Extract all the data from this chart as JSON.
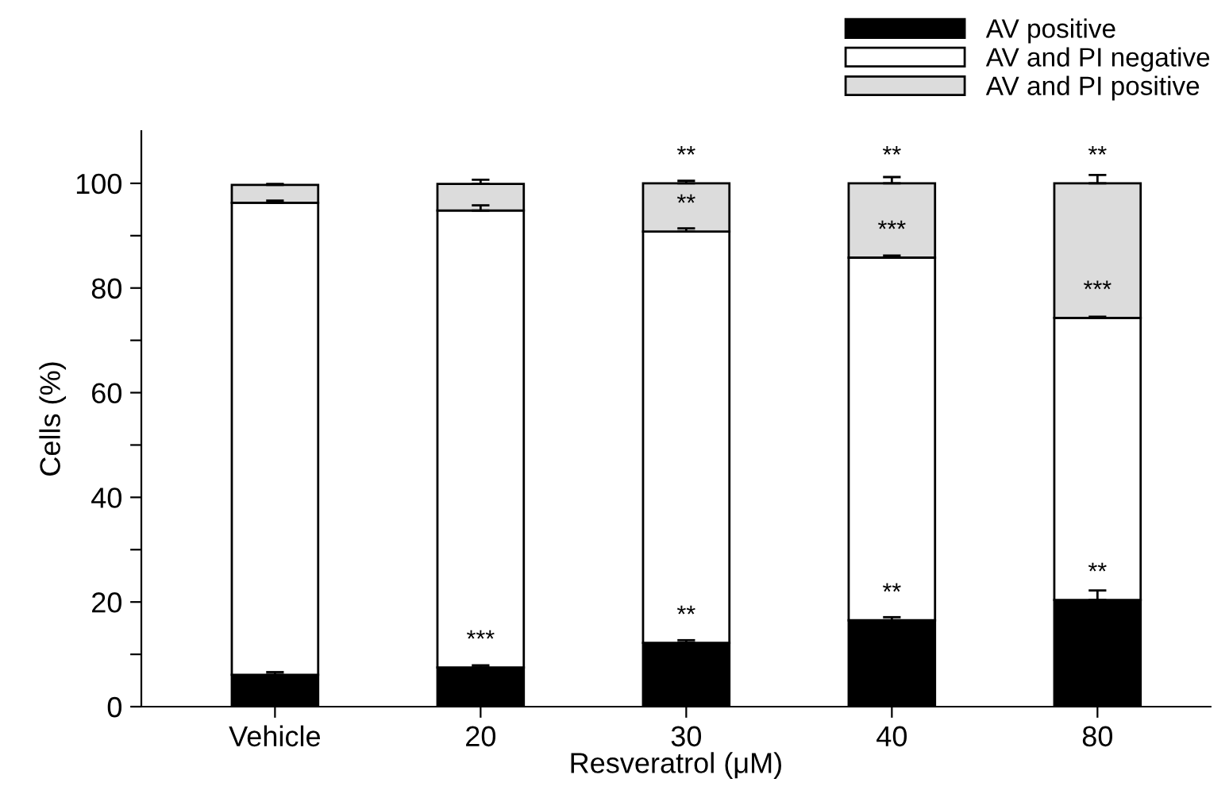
{
  "chart_data": {
    "type": "bar",
    "stacked": true,
    "xlabel": "Resveratrol (μM)",
    "ylabel": "Cells (%)",
    "categories": [
      "Vehicle",
      "20",
      "30",
      "40",
      "80"
    ],
    "series": [
      {
        "name": "AV positive",
        "color": "#000000",
        "values": [
          6.1,
          7.5,
          12.2,
          16.5,
          20.4
        ],
        "errors": [
          0.5,
          0.4,
          0.5,
          0.6,
          1.8
        ]
      },
      {
        "name": "AV and PI negative",
        "color": "#ffffff",
        "values": [
          90.2,
          87.3,
          78.6,
          69.3,
          53.9
        ],
        "errors": [
          0.4,
          1.0,
          0.6,
          0.4,
          0.2
        ]
      },
      {
        "name": "AV and PI positive",
        "color": "#dcdcdc",
        "values": [
          3.4,
          5.1,
          9.2,
          14.2,
          25.7
        ],
        "errors": [
          0.2,
          0.8,
          0.5,
          1.2,
          1.6
        ]
      }
    ],
    "ylim": [
      0,
      110
    ],
    "yticks": [
      0,
      {
        "value": 10,
        "label": null
      },
      20,
      {
        "value": 30,
        "label": null
      },
      40,
      {
        "value": 50,
        "label": null
      },
      60,
      {
        "value": 70,
        "label": null
      },
      80,
      {
        "value": 90,
        "label": null
      },
      100
    ],
    "grid": false,
    "legend": "top right",
    "annotations": [
      {
        "text": "***",
        "x": "20",
        "y": 7.5
      },
      {
        "text": "**",
        "x": "30",
        "y": 12.2
      },
      {
        "text": "**",
        "x": "30",
        "y": 90.8
      },
      {
        "text": "**",
        "x": "30",
        "y": 100
      },
      {
        "text": "**",
        "x": "40",
        "y": 16.5
      },
      {
        "text": "***",
        "x": "40",
        "y": 85.8
      },
      {
        "text": "**",
        "x": "40",
        "y": 100
      },
      {
        "text": "**",
        "x": "80",
        "y": 20.4
      },
      {
        "text": "***",
        "x": "80",
        "y": 74.3
      },
      {
        "text": "**",
        "x": "80",
        "y": 100
      }
    ]
  }
}
